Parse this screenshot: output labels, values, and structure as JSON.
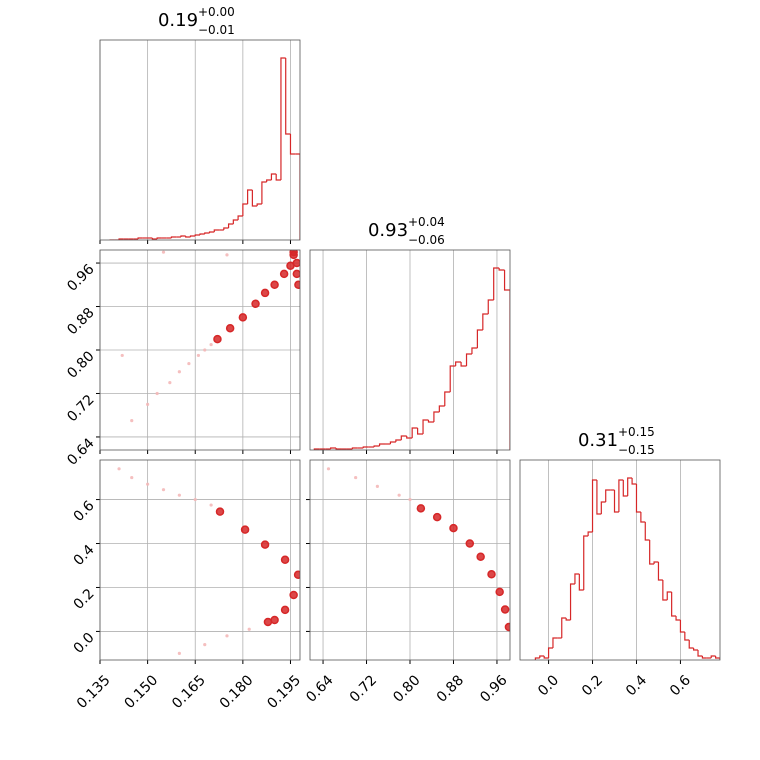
{
  "chart_data": [
    {
      "type": "hist",
      "title": {
        "text": "0.19",
        "upper": "+0.00",
        "lower": "−0.01"
      },
      "bins": [
        0.138,
        0.1395,
        0.141,
        0.1425,
        0.144,
        0.1455,
        0.147,
        0.1485,
        0.15,
        0.1515,
        0.153,
        0.1545,
        0.156,
        0.1575,
        0.159,
        0.1605,
        0.162,
        0.1635,
        0.165,
        0.1665,
        0.168,
        0.1695,
        0.171,
        0.1725,
        0.174,
        0.1755,
        0.177,
        0.1785,
        0.18,
        0.1815,
        0.183,
        0.1845,
        0.186,
        0.1875,
        0.189,
        0.1905,
        0.192,
        0.1935,
        0.195,
        0.1965,
        0.198
      ],
      "counts": [
        0,
        0,
        0.5,
        0.5,
        0.5,
        0.5,
        1,
        1,
        1,
        0.5,
        1,
        1,
        1,
        1.5,
        1.5,
        2,
        1.5,
        2,
        2.5,
        3,
        3.5,
        4,
        5,
        5,
        6,
        8,
        10,
        12,
        18,
        25,
        17,
        18,
        29,
        30,
        33,
        30,
        91,
        53,
        43,
        43
      ],
      "color": "#d62728",
      "xlim": [
        0.135,
        0.198
      ],
      "xticks": [
        0.135,
        {
          "value": 0.15,
          "label": "0.150"
        },
        0.165,
        {
          "value": 0.18,
          "label": "0.180"
        },
        0.195
      ],
      "ylim": [
        0,
        100
      ],
      "grid": true
    },
    {
      "type": "scatter",
      "series": [
        {
          "color": "#f4b8b8",
          "x": [
            0.142,
            0.153,
            0.157,
            0.16,
            0.163,
            0.166,
            0.168,
            0.17,
            0.15,
            0.145,
            0.155,
            0.175
          ],
          "y": [
            0.79,
            0.72,
            0.74,
            0.76,
            0.775,
            0.79,
            0.8,
            0.81,
            0.7,
            0.67,
            0.98,
            0.975
          ]
        },
        {
          "color": "#d62728",
          "x": [
            0.172,
            0.176,
            0.18,
            0.184,
            0.187,
            0.19,
            0.193,
            0.195,
            0.196,
            0.197,
            0.197,
            0.1975,
            0.196
          ],
          "y": [
            0.82,
            0.84,
            0.86,
            0.885,
            0.905,
            0.92,
            0.94,
            0.955,
            0.975,
            0.96,
            0.94,
            0.92,
            0.98
          ]
        }
      ],
      "xlim": [
        0.135,
        0.198
      ],
      "xticks": [
        0.135,
        {
          "value": 0.15,
          "label": "0.150"
        },
        0.165,
        {
          "value": 0.18,
          "label": "0.180"
        },
        0.195
      ],
      "ylim": [
        0.616,
        0.984
      ],
      "yticks": [
        0.64,
        0.72,
        {
          "value": 0.8,
          "label": "0.80"
        },
        0.88,
        0.96
      ],
      "grid": true
    },
    {
      "type": "hist",
      "title": {
        "text": "0.93",
        "upper": "+0.04",
        "lower": "−0.06"
      },
      "bins": [
        0.624,
        0.634,
        0.644,
        0.654,
        0.664,
        0.674,
        0.684,
        0.694,
        0.704,
        0.714,
        0.724,
        0.734,
        0.744,
        0.754,
        0.764,
        0.774,
        0.784,
        0.794,
        0.804,
        0.814,
        0.824,
        0.834,
        0.844,
        0.854,
        0.864,
        0.874,
        0.884,
        0.894,
        0.904,
        0.914,
        0.924,
        0.934,
        0.944,
        0.954,
        0.964,
        0.974,
        0.984
      ],
      "counts": [
        0.5,
        0.5,
        0.5,
        1,
        0.5,
        0.5,
        0.5,
        1,
        1,
        1.5,
        1.5,
        2,
        3,
        3,
        4,
        5,
        7,
        6,
        11,
        8,
        15,
        14,
        19,
        22,
        29,
        42,
        44,
        42,
        48,
        51,
        60,
        68,
        75,
        91,
        90,
        80
      ],
      "color": "#d62728",
      "xlim": [
        0.616,
        0.984
      ],
      "xticks": [
        0.64,
        0.72,
        {
          "value": 0.8,
          "label": "0.80"
        },
        0.88,
        0.96
      ],
      "ylim": [
        0,
        100
      ],
      "grid": true
    },
    {
      "type": "scatter",
      "series": [
        {
          "color": "#f4b8b8",
          "x": [
            0.141,
            0.145,
            0.15,
            0.155,
            0.16,
            0.165,
            0.17,
            0.16,
            0.168,
            0.175,
            0.182
          ],
          "y": [
            0.74,
            0.7,
            0.67,
            0.645,
            0.62,
            0.6,
            0.575,
            -0.1,
            -0.06,
            -0.02,
            0.01
          ]
        },
        {
          "color": "#d62728",
          "x": [
            0.1728,
            0.1807,
            0.187,
            0.1933,
            0.1974,
            0.196,
            0.1933,
            0.19,
            0.1879
          ],
          "y": [
            0.545,
            0.463,
            0.395,
            0.326,
            0.258,
            0.166,
            0.098,
            0.052,
            0.043
          ]
        }
      ],
      "xlim": [
        0.135,
        0.198
      ],
      "xticks": [
        0.135,
        {
          "value": 0.15,
          "label": "0.150"
        },
        0.165,
        {
          "value": 0.18,
          "label": "0.180"
        },
        0.195
      ],
      "ylim": [
        -0.13,
        0.78
      ],
      "yticks": [
        {
          "value": 0,
          "label": "0.0"
        },
        0.2,
        0.4,
        0.6
      ],
      "grid": true
    },
    {
      "type": "scatter",
      "series": [
        {
          "color": "#f4b8b8",
          "x": [
            0.65,
            0.7,
            0.74,
            0.78,
            0.8
          ],
          "y": [
            0.74,
            0.7,
            0.66,
            0.62,
            0.6
          ]
        },
        {
          "color": "#d62728",
          "x": [
            0.82,
            0.85,
            0.88,
            0.91,
            0.93,
            0.95,
            0.965,
            0.975,
            0.982
          ],
          "y": [
            0.56,
            0.52,
            0.47,
            0.4,
            0.34,
            0.26,
            0.18,
            0.1,
            0.02
          ]
        }
      ],
      "xlim": [
        0.616,
        0.984
      ],
      "xticks": [
        0.64,
        0.72,
        {
          "value": 0.8,
          "label": "0.80"
        },
        0.88,
        0.96
      ],
      "ylim": [
        -0.13,
        0.78
      ],
      "yticks": [
        {
          "value": 0,
          "label": "0.0"
        },
        0.2,
        0.4,
        0.6
      ],
      "grid": true
    },
    {
      "type": "hist",
      "title": {
        "text": "0.31",
        "upper": "+0.15",
        "lower": "−0.15"
      },
      "bins": [
        -0.06,
        -0.04,
        -0.02,
        0,
        0.02,
        0.04,
        0.06,
        0.08,
        0.1,
        0.12,
        0.14,
        0.16,
        0.18,
        0.2,
        0.22,
        0.24,
        0.26,
        0.28,
        0.3,
        0.32,
        0.34,
        0.36,
        0.38,
        0.4,
        0.42,
        0.44,
        0.46,
        0.48,
        0.5,
        0.52,
        0.54,
        0.56,
        0.58,
        0.6,
        0.62,
        0.64,
        0.66,
        0.68,
        0.7,
        0.72,
        0.74,
        0.76,
        0.78
      ],
      "counts": [
        1,
        2,
        1,
        6,
        11,
        11,
        21,
        20,
        38,
        43,
        35,
        62,
        64,
        90,
        73,
        79,
        85,
        85,
        74,
        90,
        82,
        91,
        88,
        74,
        69,
        60,
        48,
        49,
        40,
        30,
        34,
        22,
        20,
        14,
        10,
        6,
        5,
        2,
        1,
        1,
        2,
        1
      ],
      "color": "#d62728",
      "xlim": [
        -0.13,
        0.78
      ],
      "xticks": [
        {
          "value": 0,
          "label": "0.0"
        },
        0.2,
        0.4,
        0.6
      ],
      "ylim": [
        0,
        100
      ],
      "grid": true
    }
  ]
}
